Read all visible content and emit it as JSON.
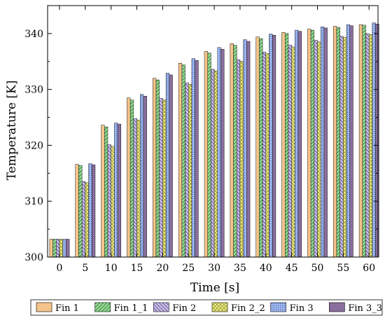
{
  "chart_data": {
    "type": "bar",
    "title": "",
    "xlabel": "Time [s]",
    "ylabel": "Temperature [K]",
    "categories": [
      "0",
      "5",
      "10",
      "15",
      "20",
      "25",
      "30",
      "35",
      "40",
      "45",
      "50",
      "55",
      "60"
    ],
    "ylim": [
      300,
      345
    ],
    "yticks": [
      300,
      310,
      320,
      330,
      340
    ],
    "grid": false,
    "legend_position": "bottom",
    "series": [
      {
        "name": "Fin 1",
        "color": "#f5c48a",
        "pattern": "solid",
        "values": [
          303.2,
          316.6,
          323.6,
          328.5,
          332.0,
          334.7,
          336.8,
          338.2,
          339.4,
          340.2,
          340.8,
          341.3,
          341.6
        ]
      },
      {
        "name": "Fin 1_1",
        "color": "#9ad99a",
        "pattern": "diagonal",
        "values": [
          303.2,
          316.4,
          323.3,
          328.1,
          331.7,
          334.4,
          336.5,
          337.9,
          339.1,
          340.0,
          340.6,
          341.1,
          341.5
        ]
      },
      {
        "name": "Fin 2",
        "color": "#cbbfe8",
        "pattern": "diagonal-back",
        "values": [
          303.2,
          313.5,
          320.1,
          324.8,
          328.4,
          331.2,
          333.6,
          335.3,
          336.7,
          337.9,
          338.8,
          339.5,
          340.0
        ]
      },
      {
        "name": "Fin 2_2",
        "color": "#f0ee8a",
        "pattern": "crosshatch",
        "values": [
          303.2,
          313.3,
          319.8,
          324.5,
          328.1,
          330.9,
          333.3,
          335.0,
          336.4,
          337.6,
          338.5,
          339.3,
          339.8
        ]
      },
      {
        "name": "Fin 3",
        "color": "#9fb8ef",
        "pattern": "dots",
        "values": [
          303.2,
          316.7,
          324.0,
          329.1,
          332.9,
          335.5,
          337.5,
          338.9,
          339.9,
          340.6,
          341.2,
          341.6,
          341.9
        ]
      },
      {
        "name": "Fin 3_3",
        "color": "#8a6f9e",
        "pattern": "solid",
        "values": [
          303.2,
          316.5,
          323.8,
          328.8,
          332.6,
          335.2,
          337.2,
          338.6,
          339.7,
          340.4,
          341.0,
          341.4,
          341.7
        ]
      }
    ]
  }
}
